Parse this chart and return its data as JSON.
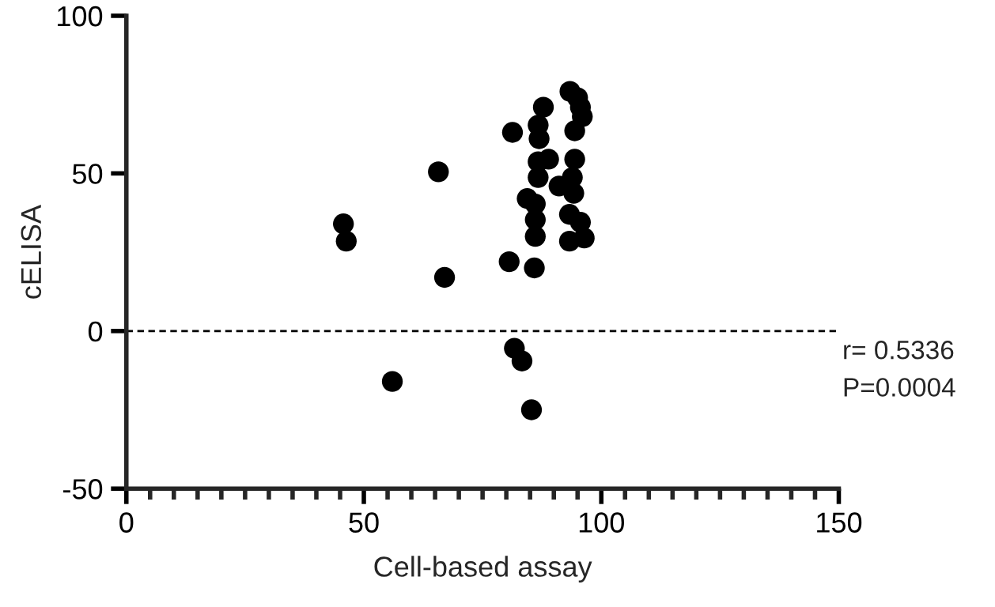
{
  "chart_data": {
    "type": "scatter",
    "xlabel": "Cell-based assay",
    "ylabel": "cELISA",
    "x": [
      45.7,
      46.3,
      56,
      65.7,
      67,
      80.6,
      81.3,
      81.7,
      83.3,
      85.3,
      93.4,
      95,
      95.6,
      96,
      94.4,
      87.8,
      86.7,
      86.9,
      86.7,
      88.9,
      94.4,
      86.7,
      91.1,
      93.9,
      94.2,
      84.4,
      86.1,
      86.1,
      93.3,
      95.6,
      86.1,
      93.3,
      96.4,
      85.9
    ],
    "values": [
      34,
      28.5,
      -16,
      50.5,
      17,
      22,
      63,
      -5.5,
      -9.5,
      -25,
      76,
      74,
      71,
      68,
      63.5,
      71,
      65.3,
      61,
      53.7,
      54.5,
      54.5,
      48.7,
      46,
      48.7,
      43.7,
      42,
      40.3,
      35.3,
      37,
      34.5,
      30,
      28.5,
      29.5,
      20
    ],
    "color": "#000000",
    "marker": "circle",
    "xlim": [
      0,
      150
    ],
    "xticks": [
      0,
      {
        "value": 5,
        "label": null
      },
      {
        "value": 10,
        "label": null
      },
      {
        "value": 15,
        "label": null
      },
      {
        "value": 20,
        "label": null
      },
      {
        "value": 25,
        "label": null
      },
      {
        "value": 30,
        "label": null
      },
      {
        "value": 35,
        "label": null
      },
      {
        "value": 40,
        "label": null
      },
      {
        "value": 45,
        "label": null
      },
      50,
      {
        "value": 55,
        "label": null
      },
      {
        "value": 60,
        "label": null
      },
      {
        "value": 65,
        "label": null
      },
      {
        "value": 70,
        "label": null
      },
      {
        "value": 75,
        "label": null
      },
      {
        "value": 80,
        "label": null
      },
      {
        "value": 85,
        "label": null
      },
      {
        "value": 90,
        "label": null
      },
      {
        "value": 95,
        "label": null
      },
      100,
      {
        "value": 105,
        "label": null
      },
      {
        "value": 110,
        "label": null
      },
      {
        "value": 115,
        "label": null
      },
      {
        "value": 120,
        "label": null
      },
      {
        "value": 125,
        "label": null
      },
      {
        "value": 130,
        "label": null
      },
      {
        "value": 135,
        "label": null
      },
      {
        "value": 140,
        "label": null
      },
      {
        "value": 145,
        "label": null
      },
      150
    ],
    "ylim": [
      -50,
      100
    ],
    "yticks": [
      -50,
      0,
      50,
      100
    ],
    "ref_lines": [
      {
        "axis": "y",
        "value": 0,
        "color": "#000000",
        "line_style": "dashed"
      }
    ],
    "annotations": [
      "r= 0.5336",
      "P=0.0004"
    ],
    "grid": false
  }
}
